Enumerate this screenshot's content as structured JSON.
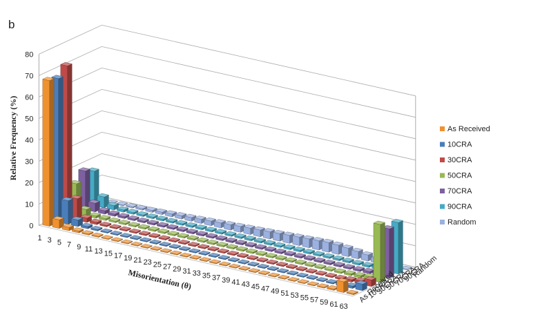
{
  "chart_data": {
    "type": "bar3d",
    "panel_label": "b",
    "y_label": "Relative Frequency (%)",
    "x_label": "Misorientation (θ)",
    "categories": [
      "1",
      "3",
      "5",
      "7",
      "9",
      "11",
      "13",
      "15",
      "17",
      "19",
      "21",
      "23",
      "25",
      "27",
      "29",
      "31",
      "33",
      "35",
      "37",
      "39",
      "41",
      "43",
      "45",
      "47",
      "49",
      "51",
      "53",
      "55",
      "57",
      "59",
      "61",
      "63"
    ],
    "ylim": [
      0,
      80
    ],
    "yticks": [
      0,
      10,
      20,
      30,
      40,
      50,
      60,
      70,
      80
    ],
    "grid": true,
    "series": [
      {
        "name": "As Received",
        "color": "#f0912f",
        "values": [
          68,
          4,
          1.5,
          0.8,
          0.5,
          0.4,
          0.3,
          0.3,
          0.3,
          0.3,
          0.3,
          0.3,
          0.3,
          0.3,
          0.3,
          0.3,
          0.3,
          0.3,
          0.3,
          0.3,
          0.3,
          0.3,
          0.3,
          0.3,
          0.3,
          0.3,
          0.3,
          0.3,
          0.4,
          0.6,
          5,
          0.5
        ]
      },
      {
        "name": "10CRA",
        "color": "#4a7ebb",
        "values": [
          67,
          11,
          3,
          1,
          0.6,
          0.4,
          0.4,
          0.4,
          0.4,
          0.4,
          0.4,
          0.4,
          0.4,
          0.4,
          0.4,
          0.4,
          0.4,
          0.4,
          0.4,
          0.4,
          0.4,
          0.4,
          0.4,
          0.4,
          0.4,
          0.4,
          0.4,
          0.4,
          0.5,
          0.8,
          1,
          3
        ]
      },
      {
        "name": "30CRA",
        "color": "#be4b48",
        "values": [
          71,
          10,
          2,
          1,
          0.6,
          0.5,
          0.5,
          0.5,
          0.5,
          0.5,
          0.5,
          0.5,
          0.5,
          0.5,
          0.5,
          0.5,
          0.5,
          0.5,
          0.5,
          0.5,
          0.5,
          0.5,
          0.5,
          0.5,
          0.5,
          0.5,
          0.5,
          0.5,
          0.6,
          1,
          1.5,
          3
        ]
      },
      {
        "name": "50CRA",
        "color": "#98b954",
        "values": [
          14,
          3,
          1,
          0.8,
          0.6,
          0.6,
          0.6,
          0.6,
          0.6,
          0.6,
          0.6,
          0.6,
          0.6,
          0.6,
          0.6,
          0.6,
          0.6,
          0.6,
          0.6,
          0.6,
          0.6,
          0.6,
          0.6,
          0.6,
          0.6,
          0.6,
          0.6,
          0.6,
          0.8,
          1,
          1.5,
          27
        ]
      },
      {
        "name": "70CRA",
        "color": "#7d60a0",
        "values": [
          18,
          4,
          1.5,
          1,
          0.8,
          0.7,
          0.7,
          0.7,
          0.7,
          0.7,
          0.7,
          0.7,
          0.7,
          0.7,
          0.7,
          0.7,
          0.7,
          0.7,
          0.7,
          0.7,
          0.7,
          0.7,
          0.7,
          0.7,
          0.7,
          0.7,
          0.7,
          0.7,
          0.8,
          1,
          1.5,
          23
        ]
      },
      {
        "name": "90CRA",
        "color": "#46aac5",
        "values": [
          16,
          5,
          2,
          1,
          0.8,
          0.7,
          0.7,
          0.7,
          0.7,
          0.7,
          0.7,
          0.7,
          0.7,
          0.7,
          0.7,
          0.7,
          0.7,
          0.7,
          0.7,
          0.7,
          0.7,
          0.7,
          0.7,
          0.7,
          0.7,
          0.7,
          0.7,
          0.7,
          0.8,
          1,
          1.5,
          24
        ]
      },
      {
        "name": "Random",
        "color": "#9bb1e0",
        "values": [
          0.05,
          0.15,
          0.3,
          0.5,
          0.7,
          0.9,
          1.1,
          1.3,
          1.5,
          1.7,
          1.9,
          2.1,
          2.3,
          2.5,
          2.7,
          2.9,
          3.1,
          3.3,
          3.5,
          3.7,
          3.9,
          4.1,
          4.3,
          4.5,
          4.3,
          3.9,
          3.4,
          2.8,
          2.1,
          1.4,
          0.7,
          0.2
        ]
      }
    ]
  }
}
